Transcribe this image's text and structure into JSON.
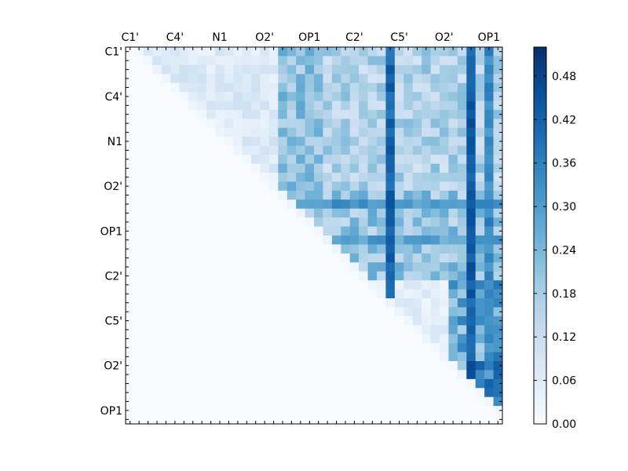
{
  "chart_data": {
    "type": "heatmap",
    "title": "",
    "xlabel": "",
    "ylabel": "",
    "size": 42,
    "cmap": "Blues",
    "vmin": 0.0,
    "vmax": 0.52,
    "x_tick_labels": [
      "C1'",
      "C4'",
      "N1",
      "O2'",
      "OP1",
      "C2'",
      "C5'",
      "O2'",
      "OP1"
    ],
    "y_tick_labels": [
      "C1'",
      "C4'",
      "N1",
      "O2'",
      "OP1",
      "C2'",
      "C5'",
      "O2'",
      "OP1"
    ],
    "label_tick_indices": [
      0,
      5,
      10,
      15,
      20,
      25,
      30,
      35,
      40
    ],
    "colorbar": {
      "ticks": [
        0.0,
        0.06,
        0.12,
        0.18,
        0.24,
        0.3,
        0.36,
        0.42,
        0.48
      ],
      "tick_labels": [
        "0.00",
        "0.06",
        "0.12",
        "0.18",
        "0.24",
        "0.30",
        "0.36",
        "0.42",
        "0.48"
      ]
    },
    "matrix_structure": "upper-triangular; lower triangle and diagonal near 0.00",
    "strong_columns": [
      {
        "col": 29,
        "value": 0.45
      },
      {
        "col": 38,
        "value": 0.47
      },
      {
        "col": 40,
        "value": 0.38
      }
    ],
    "strong_rows": [
      {
        "row": 17,
        "value": 0.36
      },
      {
        "row": 21,
        "value": 0.34
      }
    ]
  }
}
